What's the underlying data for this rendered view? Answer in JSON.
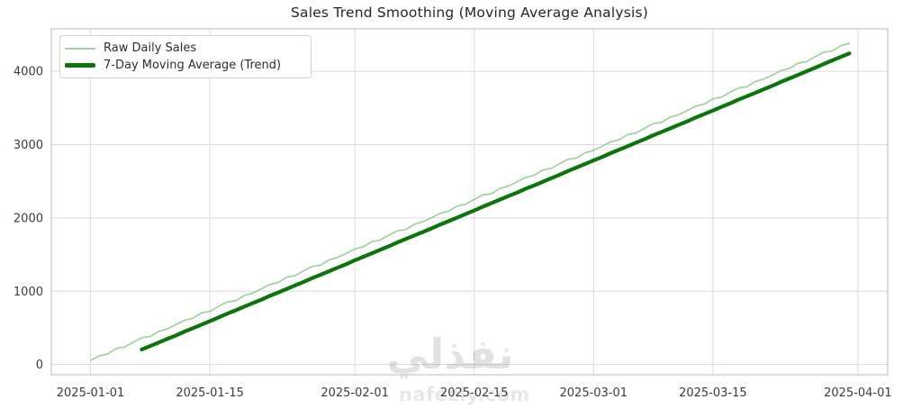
{
  "title": "Sales Trend Smoothing (Moving Average Analysis)",
  "legend": {
    "items": [
      {
        "label": "Raw Daily Sales",
        "color": "#9fd19f",
        "thickness": 2
      },
      {
        "label": "7-Day Moving Average (Trend)",
        "color": "#0a750a",
        "thickness": 5
      }
    ]
  },
  "watermark": {
    "brand_arabic": "نفذلي",
    "brand_domain": "nafezly.com"
  },
  "colors": {
    "raw_line": "#9fd19f",
    "ma_line": "#0a750a",
    "grid": "#dcdcdc",
    "spine": "#c9c9c9",
    "tick_text": "#3c3c3c"
  },
  "chart_data": {
    "type": "line",
    "title": "Sales Trend Smoothing (Moving Average Analysis)",
    "xlabel": "",
    "ylabel": "",
    "x_start_date": "2025-01-01",
    "x_frequency": "daily",
    "x_tick_labels": [
      "2025-01-01",
      "2025-01-15",
      "2025-02-01",
      "2025-02-15",
      "2025-03-01",
      "2025-03-15",
      "2025-04-01"
    ],
    "x_tick_days": [
      0,
      14,
      31,
      45,
      59,
      73,
      90
    ],
    "y_ticks": [
      0,
      1000,
      2000,
      3000,
      4000
    ],
    "xlim_days": [
      -4.6,
      93.5
    ],
    "ylim": [
      -140,
      4580
    ],
    "grid": true,
    "legend_position": "upper left",
    "series": [
      {
        "id": "raw-daily-sales-line",
        "name": "Raw Daily Sales",
        "color": "#9fd19f",
        "linewidth": 1.7,
        "start_day": 0,
        "values": [
          55,
          116,
          144,
          216,
          238,
          305,
          365,
          381,
          453,
          487,
          542,
          603,
          631,
          703,
          725,
          792,
          852,
          868,
          940,
          974,
          1029,
          1090,
          1118,
          1190,
          1212,
          1278,
          1339,
          1355,
          1427,
          1461,
          1516,
          1577,
          1605,
          1677,
          1699,
          1765,
          1826,
          1842,
          1914,
          1948,
          2003,
          2064,
          2092,
          2164,
          2186,
          2252,
          2313,
          2329,
          2401,
          2435,
          2490,
          2551,
          2579,
          2651,
          2673,
          2739,
          2800,
          2816,
          2888,
          2922,
          2977,
          3038,
          3066,
          3138,
          3160,
          3226,
          3287,
          3303,
          3375,
          3409,
          3464,
          3525,
          3553,
          3625,
          3647,
          3713,
          3774,
          3790,
          3862,
          3896,
          3951,
          4012,
          4040,
          4112,
          4134,
          4200,
          4261,
          4277,
          4349,
          4383
        ]
      },
      {
        "id": "moving-average-line",
        "name": "7-Day Moving Average (Trend)",
        "color": "#0a750a",
        "linewidth": 4.2,
        "start_day": 6,
        "values": [
          206,
          252,
          300,
          349,
          396,
          448,
          495,
          543,
          592,
          640,
          692,
          739,
          787,
          836,
          883,
          935,
          982,
          1030,
          1079,
          1127,
          1179,
          1226,
          1274,
          1323,
          1370,
          1422,
          1469,
          1517,
          1566,
          1614,
          1666,
          1713,
          1761,
          1810,
          1857,
          1909,
          1956,
          2004,
          2053,
          2101,
          2153,
          2200,
          2248,
          2297,
          2344,
          2396,
          2443,
          2491,
          2540,
          2588,
          2640,
          2687,
          2735,
          2784,
          2831,
          2883,
          2930,
          2978,
          3027,
          3075,
          3127,
          3174,
          3222,
          3271,
          3318,
          3370,
          3417,
          3465,
          3514,
          3562,
          3614,
          3661,
          3709,
          3758,
          3805,
          3857,
          3904,
          3952,
          4001,
          4049,
          4101,
          4148,
          4196,
          4245
        ]
      }
    ]
  }
}
